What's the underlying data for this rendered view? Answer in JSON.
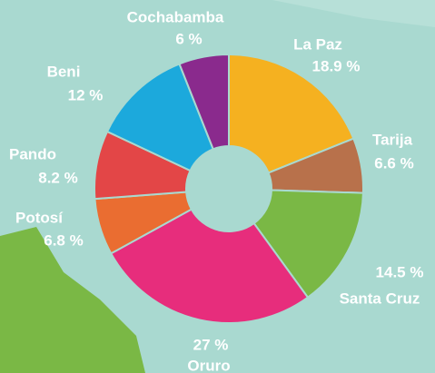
{
  "chart_data": {
    "type": "donut",
    "categories": [
      "La Paz",
      "Tarija",
      "Santa Cruz",
      "Oruro",
      "Potosí",
      "Pando",
      "Beni",
      "Cochabamba"
    ],
    "values": [
      18.9,
      6.6,
      14.5,
      27,
      6.8,
      8.2,
      12,
      6
    ],
    "value_labels": [
      "18.9 %",
      "6.6 %",
      "14.5 %",
      "27 %",
      "6.8 %",
      "8.2 %",
      "12 %",
      "6 %"
    ],
    "colors": [
      "#f5b120",
      "#b8714b",
      "#7ab845",
      "#e72d7c",
      "#ea6d31",
      "#e34647",
      "#1ca9dc",
      "#8a2a8d"
    ]
  }
}
